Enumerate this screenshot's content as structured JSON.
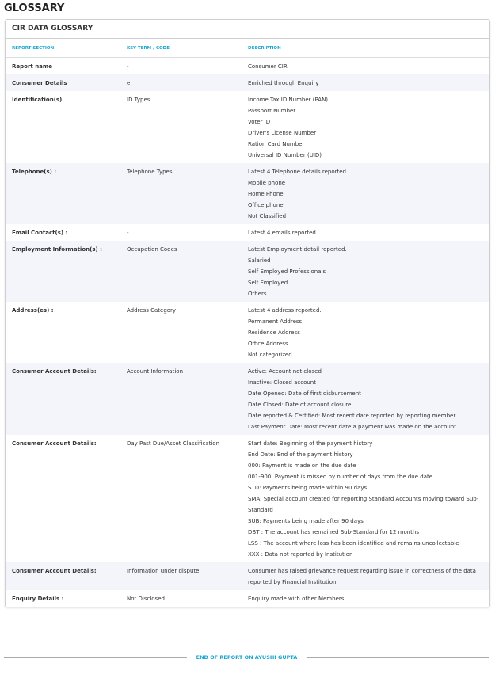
{
  "page_title": "GLOSSARY",
  "card_title": "CIR DATA GLOSSARY",
  "columns": [
    "REPORT SECTION",
    "KEY TERM / CODE",
    "DESCRIPTION"
  ],
  "rows": [
    {
      "section": "Report name",
      "term": "-",
      "desc": [
        "Consumer CIR"
      ]
    },
    {
      "section": "Consumer Details",
      "term": "e",
      "desc": [
        "Enriched through Enquiry"
      ]
    },
    {
      "section": "Identification(s)",
      "term": "ID Types",
      "desc": [
        "Income Tax ID Number (PAN)",
        "Passport Number",
        "Voter ID",
        "Driver's License Number",
        "Ration Card Number",
        "Universal ID Number (UID)"
      ]
    },
    {
      "section": "Telephone(s) :",
      "term": "Telephone Types",
      "desc": [
        "Latest 4 Telephone details reported.",
        "Mobile phone",
        "Home Phone",
        "Office phone",
        "Not Classified"
      ]
    },
    {
      "section": "Email Contact(s) :",
      "term": "-",
      "desc": [
        "Latest 4 emails reported."
      ]
    },
    {
      "section": "Employment Information(s) :",
      "term": "Occupation Codes",
      "desc": [
        "Latest Employment detail reported.",
        "Salaried",
        "Self Employed Professionals",
        "Self Employed",
        "Others"
      ]
    },
    {
      "section": "Address(es) :",
      "term": "Address Category",
      "desc": [
        "Latest 4 address reported.",
        "Permanent Address",
        "Residence Address",
        "Office Address",
        "Not categorized"
      ]
    },
    {
      "section": "Consumer Account Details:",
      "term": "Account Information",
      "desc": [
        "Active: Account not closed",
        "Inactive: Closed account",
        "Date Opened: Date of first disbursement",
        "Date Closed: Date of account closure",
        "Date reported & Certified: Most recent date reported by reporting member",
        "Last Payment Date: Most recent date a payment was made on the account."
      ]
    },
    {
      "section": "Consumer Account Details:",
      "term": "Day Past Due/Asset Classification",
      "desc": [
        "Start date: Beginning of the payment history",
        "End Date: End of the payment history",
        "000: Payment is made on the due date",
        "001-900: Payment is missed by number of days from the due date",
        "STD: Payments being made within 90 days",
        "SMA: Special account created for reporting Standard Accounts moving toward Sub-Standard",
        "SUB: Payments being made after 90 days",
        "DBT : The account has remained Sub-Standard for 12 months",
        "LSS : The account where loss has been identified and remains uncollectable",
        "XXX : Data not reported by Institution"
      ]
    },
    {
      "section": "Consumer Account Details:",
      "term": "Information under dispute",
      "desc": [
        "Consumer has raised grievance request regarding issue in correctness of the data reported by Financial Institution"
      ]
    },
    {
      "section": "Enquiry Details :",
      "term": "Not Disclosed",
      "desc": [
        "Enquiry made with other Members"
      ]
    }
  ],
  "footer": "END OF REPORT ON AYUSHI GUPTA"
}
